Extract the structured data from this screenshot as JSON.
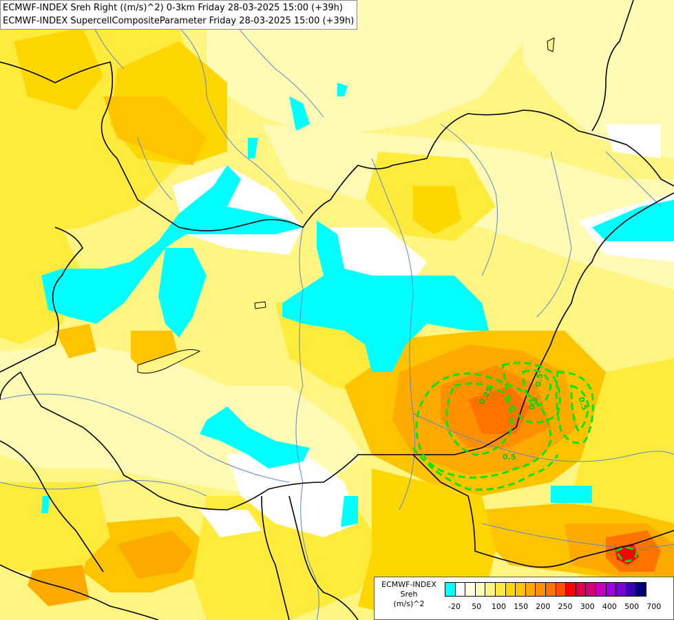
{
  "header": {
    "line1": "ECMWF-INDEX Sreh Right ((m/s)^2) 0-3km Friday 28-03-2025 15:00 (+39h)",
    "line2": "ECMWF-INDEX SupercellCompositeParameter Friday 28-03-2025 15:00 (+39h)"
  },
  "contour_labels": [
    "0.25",
    "0.5",
    "0.5",
    "0.5",
    "0.5"
  ],
  "legend": {
    "title": "ECMWF-INDEX",
    "variable": "Sreh",
    "unit": "(m/s)^2",
    "colors": [
      "#00ffff",
      "#ffffff",
      "#ffffe6",
      "#fffab4",
      "#fff582",
      "#ffeb3c",
      "#ffd700",
      "#ffc400",
      "#ffaa00",
      "#ff9100",
      "#ff7300",
      "#ff5000",
      "#ff0000",
      "#e6004b",
      "#d2007d",
      "#c800be",
      "#a000e6",
      "#7800dc",
      "#3c00b4",
      "#000078"
    ],
    "ticks": [
      "-20",
      "50",
      "100",
      "150",
      "200",
      "250",
      "300",
      "400",
      "500",
      "700"
    ]
  },
  "colors": {
    "cyan": "#00ffff",
    "white": "#ffffff",
    "pale": "#fffab4",
    "yellow": "#fff582",
    "yellow2": "#ffeb3c",
    "gold": "#ffd700",
    "amber": "#ffc400",
    "orange": "#ffaa00",
    "orange2": "#ff9100",
    "deep": "#ff7300",
    "red": "#ff0000",
    "contour": "#00e600",
    "border": "#000000",
    "river": "#5a87c8"
  }
}
